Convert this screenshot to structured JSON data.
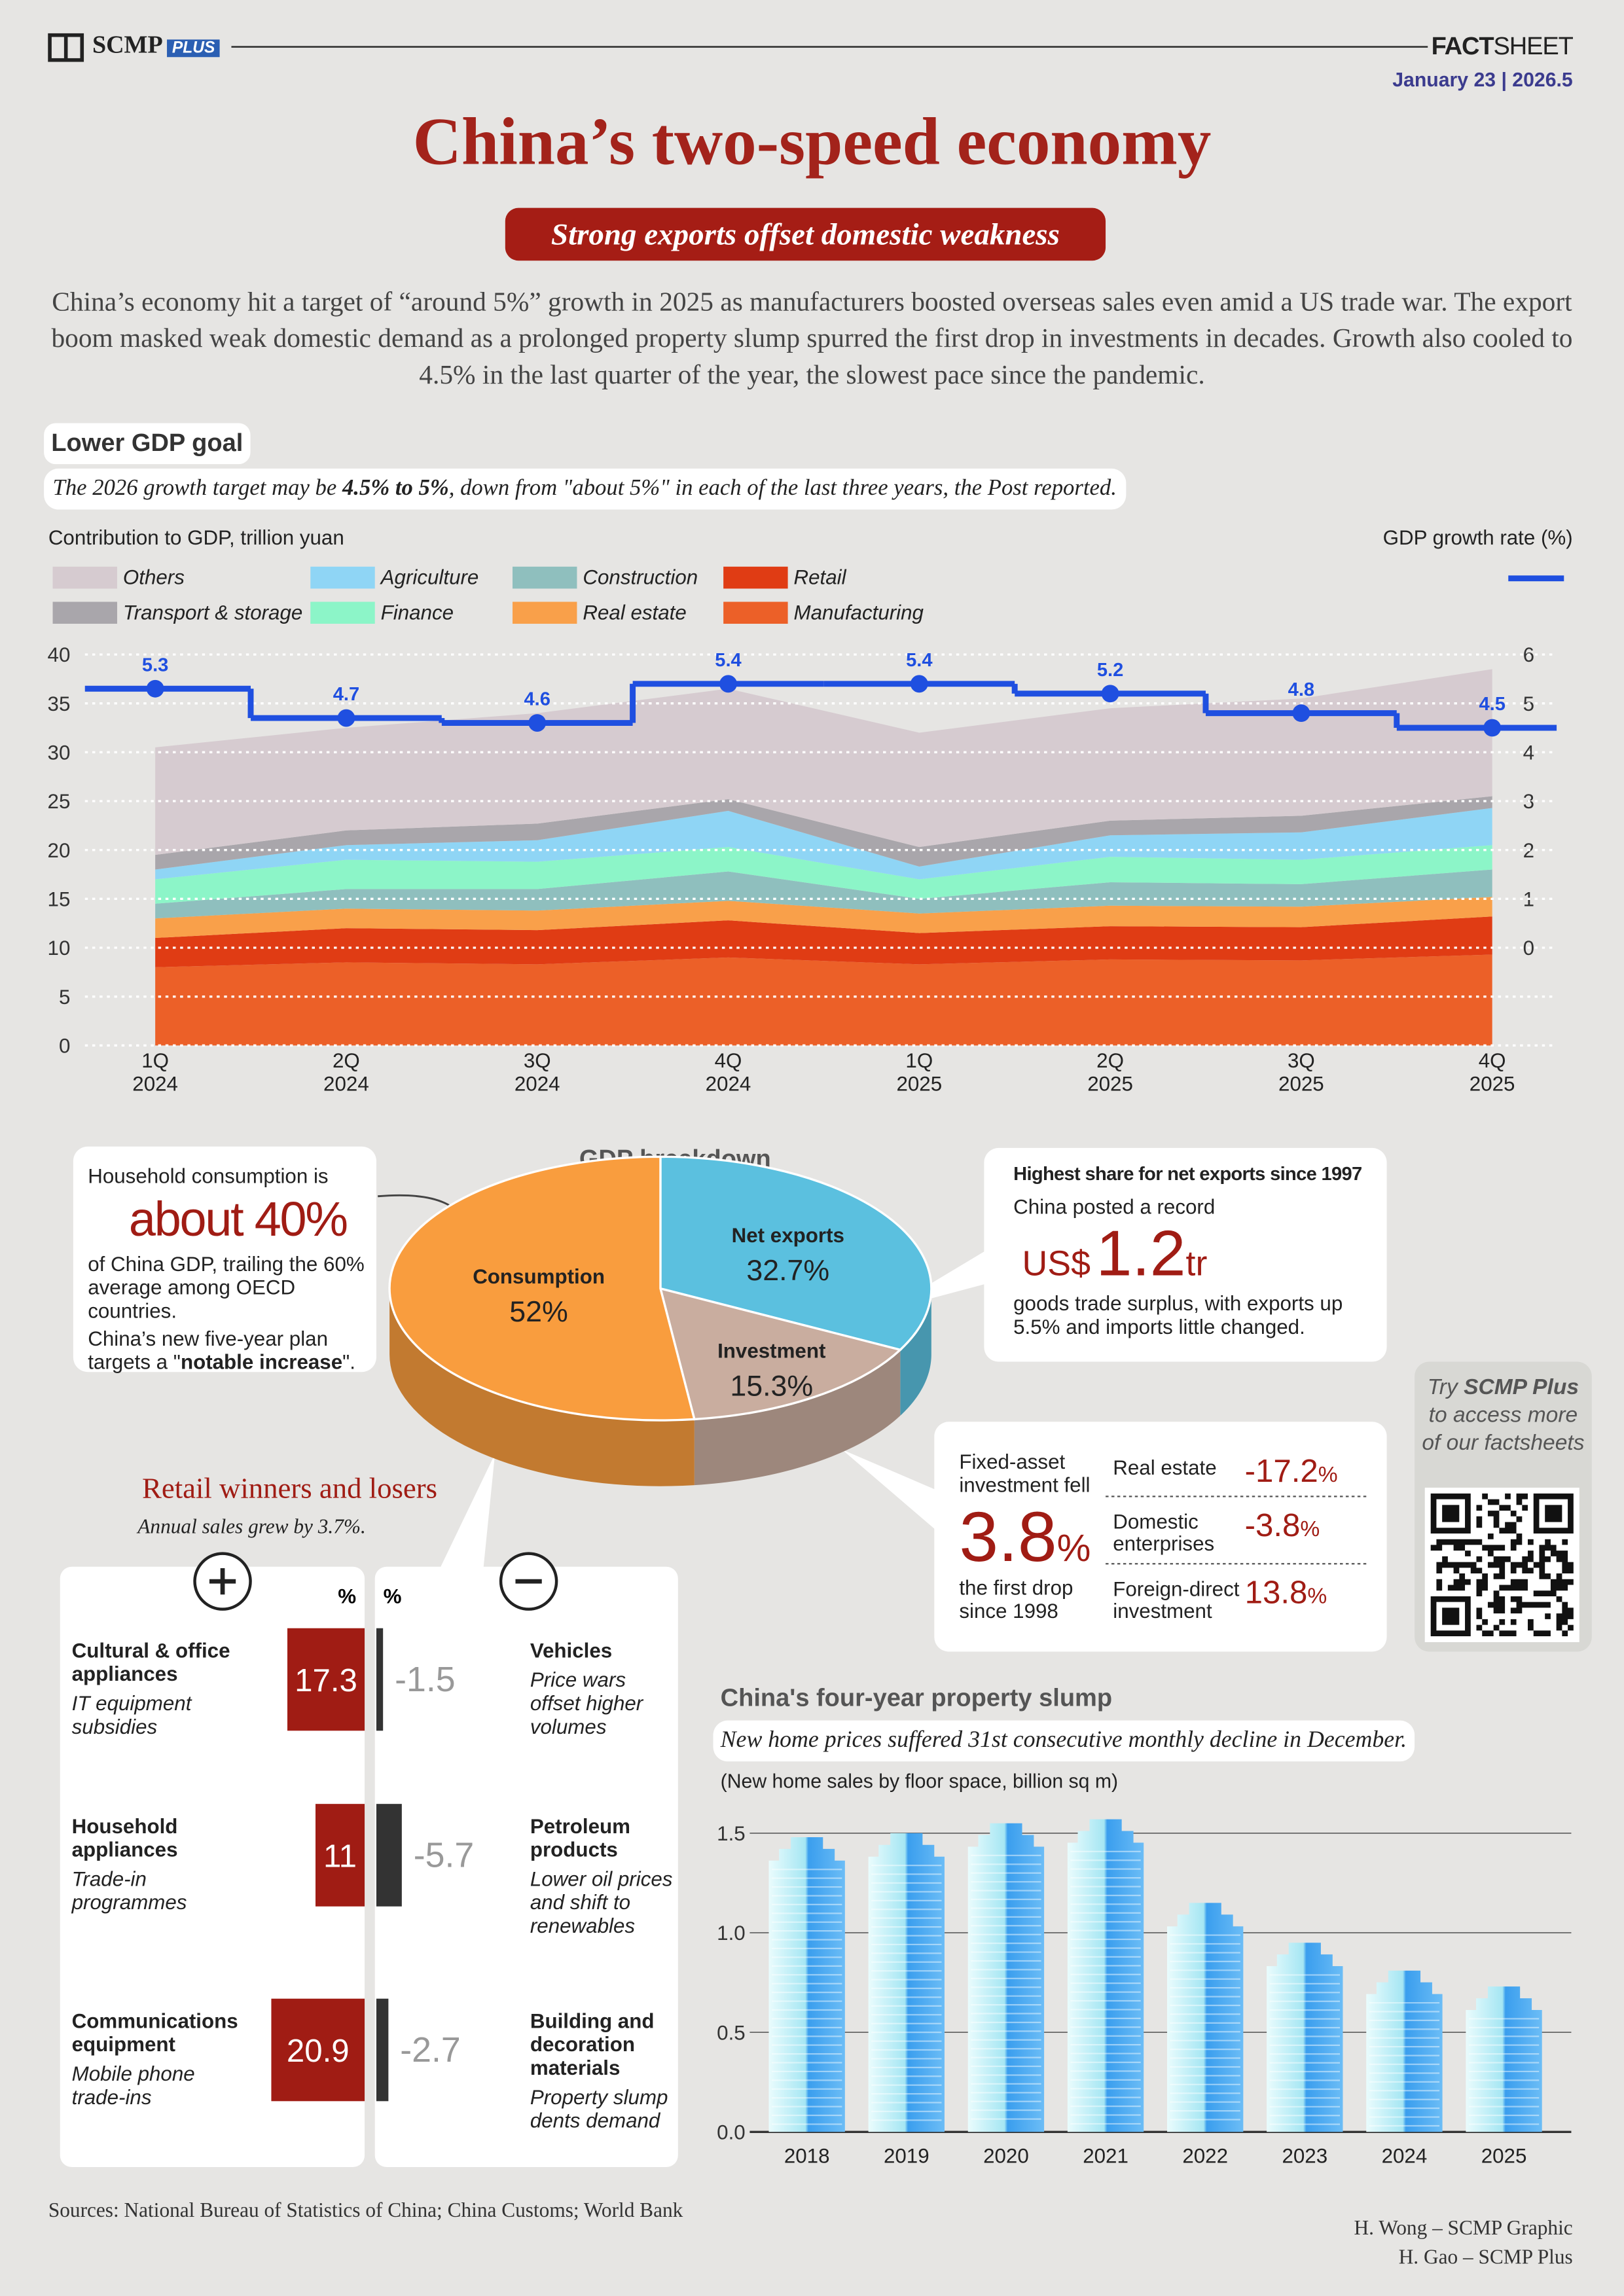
{
  "header": {
    "brand": "SCMP",
    "brand_tag": "PLUS",
    "label_bold": "FACT",
    "label": "SHEET",
    "date": "January 23 | 2026.5"
  },
  "title": "China’s two-speed economy",
  "subtitle": "Strong exports offset domestic weakness",
  "intro": "China’s economy hit a target of “around 5%” growth in 2025 as manufacturers boosted overseas sales even amid a US trade war. The export boom masked weak domestic demand as a prolonged property slump spurred the first drop in investments in decades. Growth also cooled to 4.5% in the last quarter of the year, the slowest pace since the pandemic.",
  "gdp_goal": {
    "label": "Lower GDP goal",
    "note_before": "The 2026 growth target may be ",
    "note_bold": "4.5% to 5%",
    "note_after": ", down from \"about 5%\" in each of the last three years, the Post reported."
  },
  "chart_data": [
    {
      "type": "area",
      "stacked": true,
      "y_label": "Contribution to GDP, trillion yuan",
      "categories": [
        "1Q 2024",
        "2Q 2024",
        "3Q 2024",
        "4Q 2024",
        "1Q 2025",
        "2Q 2025",
        "3Q 2025",
        "4Q 2025"
      ],
      "ylim": [
        0,
        40
      ],
      "yticks": [
        0,
        5,
        10,
        15,
        20,
        25,
        30,
        35,
        40
      ],
      "y2lim": [
        -2,
        6
      ],
      "y2ticks": [
        0,
        1,
        2,
        3,
        4,
        5,
        6
      ],
      "grid": true,
      "series": [
        {
          "name": "Manufacturing",
          "color": "#ec6028",
          "values": [
            8,
            8.5,
            8.3,
            9,
            8.3,
            8.8,
            8.7,
            9.3
          ]
        },
        {
          "name": "Retail",
          "color": "#e03c14",
          "values": [
            3,
            3.5,
            3.5,
            3.8,
            3.2,
            3.4,
            3.4,
            3.9
          ]
        },
        {
          "name": "Real estate",
          "color": "#f9a04a",
          "values": [
            2,
            2,
            2,
            2,
            2,
            2.1,
            2.1,
            2
          ]
        },
        {
          "name": "Construction",
          "color": "#8fbfbe",
          "values": [
            1.5,
            2,
            2.2,
            3,
            1.5,
            2.4,
            2.3,
            2.8
          ]
        },
        {
          "name": "Finance",
          "color": "#8cf5c8",
          "values": [
            2.5,
            3,
            2.8,
            2.5,
            2,
            2.6,
            2.5,
            2.5
          ]
        },
        {
          "name": "Agriculture",
          "color": "#8fd5f5",
          "values": [
            1,
            1.5,
            2.2,
            3.7,
            1.3,
            2.2,
            2.8,
            3.8
          ]
        },
        {
          "name": "Transport & storage",
          "color": "#a9a6ab",
          "values": [
            1.5,
            1.5,
            1.7,
            1.2,
            2,
            1.5,
            1.7,
            1.2
          ]
        },
        {
          "name": "Others",
          "color": "#d6cbd0",
          "values": [
            11,
            10.5,
            11.3,
            11.3,
            11.7,
            11.5,
            12,
            13
          ]
        },
        {
          "name": "GDP growth rate (%)",
          "type": "step",
          "axis": "y2",
          "color": "#1f4fe0",
          "values": [
            5.3,
            4.7,
            4.6,
            5.4,
            5.4,
            5.2,
            4.8,
            4.5
          ]
        }
      ]
    },
    {
      "type": "pie",
      "title": "GDP breakdown",
      "categories": [
        "Net exports",
        "Investment",
        "Consumption"
      ],
      "values": [
        32.7,
        15.3,
        52
      ],
      "value_labels": [
        "32.7%",
        "15.3%",
        "52%"
      ],
      "colors": [
        "#5bc0df",
        "#c9ad9f",
        "#f99d3e"
      ]
    },
    {
      "type": "diverging-bar",
      "title": "Retail winners and losers",
      "subtitle": "Annual sales grew by 3.7%.",
      "unit": "%",
      "winners": {
        "categories": [
          "Cultural & office appliances",
          "Household appliances",
          "Communications equipment"
        ],
        "notes": [
          "IT equipment subsidies",
          "Trade-in programmes",
          "Mobile phone trade-ins"
        ],
        "values": [
          17.3,
          11,
          20.9
        ],
        "color": "#a01c14"
      },
      "losers": {
        "categories": [
          "Vehicles",
          "Petroleum products",
          "Building and decoration materials"
        ],
        "notes": [
          "Price wars offset higher volumes",
          "Lower oil prices and shift to renewables",
          "Property slump dents demand"
        ],
        "values": [
          -1.5,
          -5.7,
          -2.7
        ],
        "color": "#333333"
      }
    },
    {
      "type": "bar",
      "title": "China's four-year property slump",
      "subtitle": "New home prices suffered 31st consecutive monthly decline in December.",
      "y_label": "(New home sales by floor space, billion sq m)",
      "categories": [
        "2018",
        "2019",
        "2020",
        "2021",
        "2022",
        "2023",
        "2024",
        "2025"
      ],
      "values": [
        1.48,
        1.5,
        1.55,
        1.57,
        1.15,
        0.95,
        0.81,
        0.73
      ],
      "ylim": [
        0,
        1.6
      ],
      "yticks": [
        {
          "value": 0,
          "label": "0.0"
        },
        {
          "value": 0.5,
          "label": "0.5"
        },
        {
          "value": 1,
          "label": "1.0"
        },
        1.5
      ],
      "grid": true
    }
  ],
  "household": {
    "lead": "Household consumption is",
    "big": "about 40%",
    "text": "of China GDP, trailing the 60% average among OECD countries.",
    "plan_before": "China’s new five-year plan targets a \"",
    "plan_bold": "notable increase",
    "plan_after": "\"."
  },
  "net_exports": {
    "heading": "Highest share for net exports since 1997",
    "lead": "China posted a record",
    "currency": "US$",
    "big": "1.2",
    "unit": "tr",
    "text": "goods trade surplus, with exports up 5.5% and imports little changed."
  },
  "investment": {
    "lead": "Fixed-asset investment fell",
    "big": "3.8",
    "unit": "%",
    "text": "the first drop since 1998",
    "rows": [
      {
        "label": "Real estate",
        "value": "-17.2",
        "unit": "%"
      },
      {
        "label": "Domestic enterprises",
        "value": "-3.8",
        "unit": "%"
      },
      {
        "label": "Foreign-direct investment",
        "value": "13.8",
        "unit": "%"
      }
    ]
  },
  "promo": {
    "before": "Try ",
    "brand": "SCMP Plus",
    "after": " to access more of our factsheets"
  },
  "footer": {
    "sources": "Sources: National Bureau of Statistics of China; China Customs; World Bank",
    "credit1": "H. Wong – SCMP Graphic",
    "credit2": "H. Gao – SCMP Plus"
  }
}
